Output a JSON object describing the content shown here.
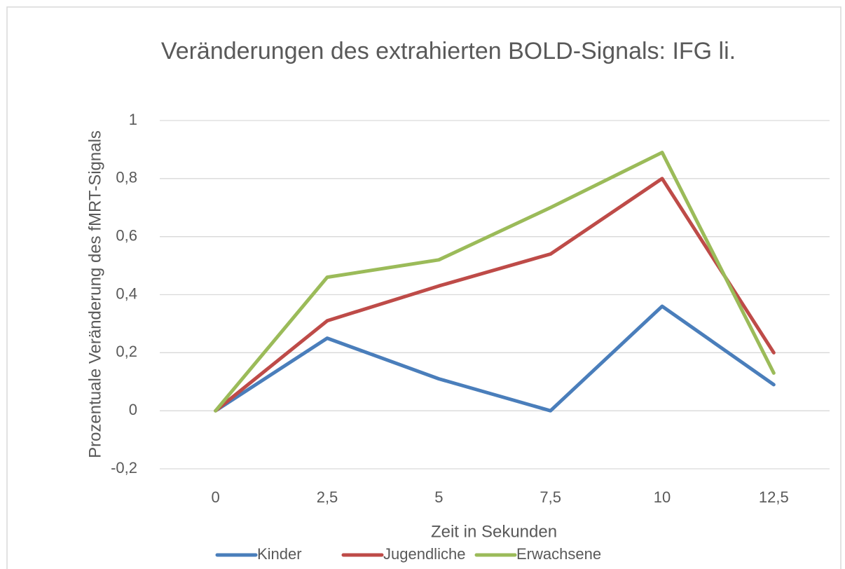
{
  "chart_data": {
    "type": "line",
    "title": "Veränderungen des extrahierten BOLD-Signals: IFG li.",
    "x_label": "Zeit in Sekunden",
    "y_label": "Prozentuale Veränderung des fMRT-Signals",
    "categories": [
      "0",
      "2,5",
      "5",
      "7,5",
      "10",
      "12,5"
    ],
    "series": [
      {
        "name": "Kinder",
        "color": "#4a7ebb",
        "values": [
          0,
          0.25,
          0.11,
          0,
          0.36,
          0.09
        ]
      },
      {
        "name": "Jugendliche",
        "color": "#be4b48",
        "values": [
          0,
          0.31,
          0.43,
          0.54,
          0.8,
          0.2
        ]
      },
      {
        "name": "Erwachsene",
        "color": "#9bbb59",
        "values": [
          0,
          0.46,
          0.52,
          0.7,
          0.89,
          0.13
        ]
      }
    ],
    "ylim": [
      -0.2,
      1
    ],
    "yticks": [
      {
        "value": -0.2,
        "label": "-0,2"
      },
      0,
      {
        "value": 0.2,
        "label": "0,2"
      },
      {
        "value": 0.4,
        "label": "0,4"
      },
      {
        "value": 0.6,
        "label": "0,6"
      },
      {
        "value": 0.8,
        "label": "0,8"
      },
      1
    ],
    "grid": true,
    "legend": "bottom"
  }
}
